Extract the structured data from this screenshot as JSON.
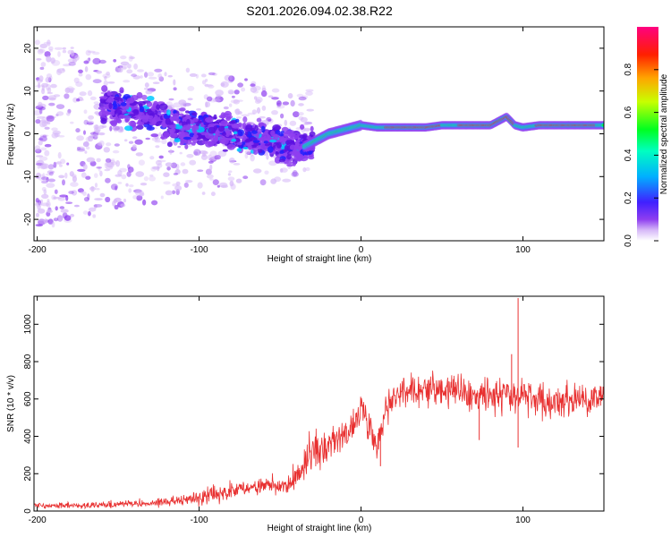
{
  "title": "S201.2026.094.02.38.R22",
  "colormap": [
    "#ffffff",
    "#d6b8f8",
    "#8e3ef0",
    "#5a10e0",
    "#2020ff",
    "#00c8ff",
    "#00ff40",
    "#c8ff00",
    "#ffa500",
    "#ff2000",
    "#ff0080"
  ],
  "chart_data": [
    {
      "type": "heatmap",
      "title": "S201.2026.094.02.38.R22",
      "xlabel": "Height of straight line (km)",
      "ylabel": "Frequency (Hz)",
      "xlim": [
        -202,
        150
      ],
      "ylim": [
        -25,
        25
      ],
      "xticks": [
        -200,
        -100,
        0,
        100
      ],
      "yticks": [
        -20,
        -10,
        0,
        10,
        20
      ],
      "ridge": {
        "x": [
          -160,
          -145,
          -130,
          -115,
          -100,
          -85,
          -70,
          -55,
          -45,
          -35,
          -30,
          -20,
          -10,
          0,
          10,
          20,
          30,
          40,
          50,
          60,
          70,
          80,
          85,
          90,
          95,
          100,
          110,
          120,
          130,
          140,
          150
        ],
        "y": [
          7,
          6,
          4,
          2,
          1,
          0,
          -1,
          -2,
          -3,
          -3,
          -2,
          0,
          1,
          2,
          1.5,
          1.5,
          1.5,
          1.5,
          2,
          2,
          2,
          2,
          3,
          4,
          2,
          1.5,
          2,
          2,
          2,
          2,
          2
        ]
      },
      "colorbar": {
        "label": "Normalized spectral amplitude",
        "range": [
          0,
          1
        ],
        "ticks": [
          "0.0",
          "0.2",
          "0.4",
          "0.6",
          "0.8"
        ]
      }
    },
    {
      "type": "line",
      "xlabel": "Height of straight line (km)",
      "ylabel": "SNR (10 * v/v)",
      "xlim": [
        -202,
        150
      ],
      "ylim": [
        0,
        1150
      ],
      "xticks": [
        -200,
        -100,
        0,
        100
      ],
      "yticks": [
        0,
        200,
        400,
        600,
        800,
        1000
      ],
      "color": "#e83030",
      "series": [
        {
          "name": "SNR",
          "x": [
            -202,
            -190,
            -180,
            -170,
            -160,
            -150,
            -140,
            -130,
            -120,
            -110,
            -100,
            -90,
            -80,
            -70,
            -60,
            -50,
            -45,
            -40,
            -35,
            -30,
            -25,
            -20,
            -15,
            -10,
            -5,
            0,
            5,
            10,
            15,
            20,
            25,
            30,
            40,
            50,
            60,
            70,
            80,
            90,
            95,
            100,
            110,
            120,
            130,
            140,
            150
          ],
          "values": [
            30,
            30,
            30,
            30,
            35,
            35,
            40,
            40,
            50,
            55,
            70,
            90,
            110,
            120,
            130,
            140,
            150,
            180,
            260,
            330,
            350,
            370,
            380,
            400,
            440,
            560,
            460,
            340,
            560,
            600,
            610,
            640,
            640,
            650,
            650,
            640,
            620,
            640,
            600,
            620,
            600,
            560,
            600,
            580,
            640
          ]
        }
      ],
      "spikes": [
        {
          "x": 97,
          "value": 1140
        },
        {
          "x": 93,
          "value": 840
        },
        {
          "x": 97,
          "value": 340
        },
        {
          "x": 73,
          "value": 380
        },
        {
          "x": 12,
          "value": 240
        }
      ]
    }
  ]
}
